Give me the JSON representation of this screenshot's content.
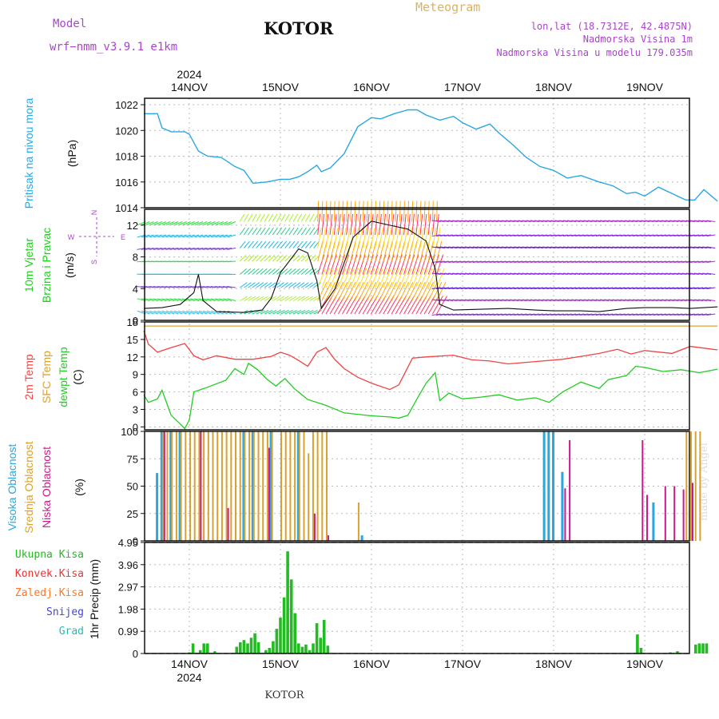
{
  "header": {
    "model_label": "Model",
    "model_name": "wrf−nmm_v3.9.1  e1km",
    "city": "KOTOR",
    "title": "Meteogram",
    "lonlat": "lon,lat (18.7312E, 42.4875N)",
    "altitude": "Nadmorska Visina 1m",
    "model_altitude": "Nadmorska Visina u modelu 179.035m",
    "footer_city": "KOTOR",
    "credit": "made by Angel"
  },
  "colors": {
    "pressure": "#2aa7e0",
    "temp_2m": "#ee4444",
    "sfc_temp": "#d9a230",
    "dewpoint": "#22cc22",
    "cloud_high": "#2aa7e0",
    "cloud_mid": "#d9a230",
    "cloud_low": "#cc1a8a",
    "precip_total": "#22bb22",
    "precip_conv": "#ee3333",
    "precip_frozen": "#ff7722",
    "precip_snow": "#4444dd",
    "precip_graupel": "#22bbbb",
    "header_purple": "#aa44cc",
    "header_orange": "#e0b060"
  },
  "chart_data": [
    {
      "type": "line",
      "panel": "pressure",
      "ylabel_lines": [
        "Pritisak na nivou mora",
        "(hPa)"
      ],
      "yticks": [
        1014,
        1016,
        1018,
        1020,
        1022
      ],
      "ylim": [
        1014,
        1022.5
      ],
      "top_labels": [
        "2024",
        "14NOV",
        "15NOV",
        "16NOV",
        "17NOV",
        "18NOV",
        "19NOV"
      ],
      "series": [
        {
          "name": "Pritisak na nivou mora",
          "points": [
            [
              -0.5,
              1021.3
            ],
            [
              -0.35,
              1021.3
            ],
            [
              -0.3,
              1020.2
            ],
            [
              -0.2,
              1019.9
            ],
            [
              -0.05,
              1019.9
            ],
            [
              0,
              1019.7
            ],
            [
              0.1,
              1018.4
            ],
            [
              0.2,
              1018
            ],
            [
              0.35,
              1017.9
            ],
            [
              0.5,
              1017.2
            ],
            [
              0.6,
              1016.9
            ],
            [
              0.7,
              1015.9
            ],
            [
              0.85,
              1016
            ],
            [
              1,
              1016.2
            ],
            [
              1.1,
              1016.2
            ],
            [
              1.2,
              1016.4
            ],
            [
              1.3,
              1016.8
            ],
            [
              1.4,
              1017.3
            ],
            [
              1.45,
              1016.8
            ],
            [
              1.55,
              1017.1
            ],
            [
              1.7,
              1018.2
            ],
            [
              1.85,
              1020.3
            ],
            [
              2,
              1021
            ],
            [
              2.1,
              1020.9
            ],
            [
              2.25,
              1021.3
            ],
            [
              2.4,
              1021.6
            ],
            [
              2.5,
              1021.6
            ],
            [
              2.6,
              1021.2
            ],
            [
              2.75,
              1020.8
            ],
            [
              2.9,
              1021.1
            ],
            [
              3,
              1020.6
            ],
            [
              3.15,
              1020.1
            ],
            [
              3.3,
              1020.5
            ],
            [
              3.4,
              1019.8
            ],
            [
              3.55,
              1018.9
            ],
            [
              3.7,
              1017.9
            ],
            [
              3.85,
              1017.2
            ],
            [
              4,
              1016.9
            ],
            [
              4.15,
              1016.3
            ],
            [
              4.3,
              1016.5
            ],
            [
              4.5,
              1016
            ],
            [
              4.65,
              1015.7
            ],
            [
              4.8,
              1015.1
            ],
            [
              4.9,
              1015.2
            ],
            [
              5,
              1014.9
            ],
            [
              5.15,
              1015.6
            ],
            [
              5.3,
              1015.1
            ],
            [
              5.45,
              1014.6
            ],
            [
              5.55,
              1014.6
            ],
            [
              5.65,
              1015.4
            ],
            [
              5.8,
              1014.5
            ]
          ]
        }
      ]
    },
    {
      "type": "line",
      "panel": "wind",
      "ylabel_lines": [
        "10m Vjetar",
        "Brzina i Pravac",
        "(m/s)"
      ],
      "compass": [
        "N",
        "W",
        "E",
        "S"
      ],
      "yticks": [
        0,
        4,
        8,
        12
      ],
      "ylim": [
        0,
        14
      ],
      "series": [
        {
          "name": "10m Vjetar brzina",
          "points": [
            [
              -0.5,
              1.5
            ],
            [
              -0.3,
              1.6
            ],
            [
              -0.1,
              2.0
            ],
            [
              0.05,
              3.5
            ],
            [
              0.1,
              5.8
            ],
            [
              0.15,
              2.5
            ],
            [
              0.3,
              1.1
            ],
            [
              0.6,
              1.0
            ],
            [
              0.8,
              1.3
            ],
            [
              0.9,
              2.8
            ],
            [
              1.0,
              6.0
            ],
            [
              1.2,
              9.0
            ],
            [
              1.3,
              8.5
            ],
            [
              1.4,
              5.0
            ],
            [
              1.45,
              1.5
            ],
            [
              1.6,
              4.0
            ],
            [
              1.8,
              10.5
            ],
            [
              2.0,
              12.5
            ],
            [
              2.2,
              12.0
            ],
            [
              2.4,
              11.5
            ],
            [
              2.6,
              10.0
            ],
            [
              2.7,
              6.5
            ],
            [
              2.75,
              2.0
            ],
            [
              2.9,
              1.3
            ],
            [
              3.2,
              1.4
            ],
            [
              3.5,
              1.5
            ],
            [
              3.8,
              1.3
            ],
            [
              4.0,
              1.2
            ],
            [
              4.3,
              1.2
            ],
            [
              4.5,
              1.1
            ],
            [
              4.8,
              1.5
            ],
            [
              5.0,
              1.6
            ],
            [
              5.3,
              1.6
            ],
            [
              5.5,
              1.5
            ],
            [
              5.8,
              1.7
            ]
          ]
        }
      ]
    },
    {
      "type": "line",
      "panel": "temperature",
      "ylabel_lines": [
        "2m Temp",
        "SFC Temp",
        "dewpt Temp",
        "(C)"
      ],
      "yticks": [
        0,
        3,
        6,
        9,
        12,
        15,
        18
      ],
      "ylim": [
        -0.5,
        18
      ],
      "series": [
        {
          "name": "2m Temp",
          "points": [
            [
              -0.5,
              16.5
            ],
            [
              -0.45,
              14.2
            ],
            [
              -0.35,
              12.8
            ],
            [
              -0.2,
              13.6
            ],
            [
              -0.05,
              14.3
            ],
            [
              0.05,
              12.2
            ],
            [
              0.15,
              11.5
            ],
            [
              0.3,
              12.2
            ],
            [
              0.5,
              11.6
            ],
            [
              0.7,
              11.6
            ],
            [
              0.9,
              12.1
            ],
            [
              1.0,
              12.8
            ],
            [
              1.1,
              12.3
            ],
            [
              1.2,
              11.4
            ],
            [
              1.3,
              10.4
            ],
            [
              1.4,
              12.8
            ],
            [
              1.5,
              13.6
            ],
            [
              1.6,
              11.5
            ],
            [
              1.7,
              10
            ],
            [
              1.85,
              8.5
            ],
            [
              2.0,
              7.5
            ],
            [
              2.2,
              6.4
            ],
            [
              2.3,
              7.2
            ],
            [
              2.45,
              11.8
            ],
            [
              2.6,
              12
            ],
            [
              2.9,
              12.3
            ],
            [
              3.1,
              11.5
            ],
            [
              3.3,
              11.3
            ],
            [
              3.5,
              10.8
            ],
            [
              3.8,
              11.2
            ],
            [
              4.1,
              11.6
            ],
            [
              4.3,
              12.1
            ],
            [
              4.5,
              12.6
            ],
            [
              4.7,
              13.3
            ],
            [
              4.85,
              12.5
            ],
            [
              5.0,
              13.1
            ],
            [
              5.3,
              12.6
            ],
            [
              5.5,
              13.8
            ],
            [
              5.8,
              13.2
            ]
          ]
        },
        {
          "name": "SFC Temp",
          "points": [
            [
              -0.5,
              17.3
            ],
            [
              5.8,
              17.3
            ]
          ]
        },
        {
          "name": "dewpt Temp",
          "points": [
            [
              -0.5,
              5.5
            ],
            [
              -0.45,
              4.2
            ],
            [
              -0.35,
              4.8
            ],
            [
              -0.3,
              6.3
            ],
            [
              -0.2,
              2
            ],
            [
              -0.1,
              0.5
            ],
            [
              -0.05,
              -0.3
            ],
            [
              0.0,
              1.2
            ],
            [
              0.05,
              6.0
            ],
            [
              0.2,
              6.8
            ],
            [
              0.4,
              8.0
            ],
            [
              0.5,
              10
            ],
            [
              0.6,
              9
            ],
            [
              0.65,
              10.9
            ],
            [
              0.75,
              9.8
            ],
            [
              0.85,
              8.2
            ],
            [
              0.95,
              7.0
            ],
            [
              1.05,
              8.3
            ],
            [
              1.15,
              6.6
            ],
            [
              1.3,
              4.7
            ],
            [
              1.5,
              3.7
            ],
            [
              1.7,
              2.4
            ],
            [
              2.0,
              1.9
            ],
            [
              2.2,
              1.7
            ],
            [
              2.3,
              1.5
            ],
            [
              2.4,
              2.0
            ],
            [
              2.5,
              4.8
            ],
            [
              2.6,
              7.5
            ],
            [
              2.7,
              9.3
            ],
            [
              2.75,
              4.5
            ],
            [
              2.85,
              5.8
            ],
            [
              3.0,
              4.8
            ],
            [
              3.2,
              5.1
            ],
            [
              3.4,
              5.5
            ],
            [
              3.6,
              4.6
            ],
            [
              3.8,
              5.0
            ],
            [
              3.95,
              4.2
            ],
            [
              4.1,
              6.0
            ],
            [
              4.3,
              7.7
            ],
            [
              4.5,
              6.6
            ],
            [
              4.6,
              8.1
            ],
            [
              4.8,
              8.8
            ],
            [
              4.9,
              10.4
            ],
            [
              5.0,
              10.2
            ],
            [
              5.2,
              9.5
            ],
            [
              5.4,
              9.8
            ],
            [
              5.6,
              9.3
            ],
            [
              5.8,
              9.9
            ]
          ]
        }
      ]
    },
    {
      "type": "bar",
      "panel": "clouds",
      "ylabel_lines": [
        "Visoka Oblacnost",
        "Srednja Oblacnost",
        "Niska Oblacnost",
        "(%)"
      ],
      "yticks": [
        0,
        25,
        50,
        75,
        100
      ],
      "ylim": [
        0,
        100
      ],
      "series": [
        {
          "name": "Visoka Oblacnost",
          "x": [
            -0.35,
            -0.3,
            -0.2,
            -0.1,
            0.6,
            0.7,
            0.9,
            1.2,
            1.9,
            3.9,
            3.95,
            4.0,
            4.1,
            5.1
          ],
          "values": [
            62,
            100,
            100,
            100,
            100,
            100,
            100,
            100,
            5,
            100,
            100,
            100,
            63,
            35
          ]
        },
        {
          "name": "Srednja Oblacnost",
          "x": [
            -0.3,
            -0.25,
            -0.2,
            -0.15,
            -0.1,
            -0.05,
            0,
            0.05,
            0.1,
            0.15,
            0.2,
            0.25,
            0.3,
            0.35,
            0.4,
            0.45,
            0.5,
            0.55,
            0.6,
            0.65,
            0.7,
            0.75,
            0.8,
            0.85,
            0.9,
            1.0,
            1.05,
            1.1,
            1.15,
            1.2,
            1.25,
            1.3,
            1.35,
            1.4,
            1.45,
            1.5,
            1.85,
            5.45,
            5.5,
            5.55,
            5.6
          ],
          "values": [
            100,
            100,
            100,
            100,
            100,
            100,
            100,
            100,
            100,
            100,
            100,
            100,
            100,
            100,
            100,
            100,
            100,
            100,
            100,
            100,
            100,
            100,
            100,
            100,
            100,
            100,
            100,
            100,
            100,
            100,
            100,
            80,
            100,
            100,
            100,
            100,
            35,
            100,
            100,
            100,
            100
          ]
        },
        {
          "name": "Niska Oblacnost",
          "x": [
            -0.3,
            0.1,
            0.4,
            0.85,
            1.35,
            1.5,
            4.1,
            4.15,
            4.95,
            5.0,
            5.2,
            5.3,
            5.4,
            5.5
          ],
          "values": [
            100,
            100,
            30,
            85,
            25,
            5,
            48,
            92,
            92,
            42,
            50,
            50,
            47,
            53
          ]
        }
      ]
    },
    {
      "type": "bar",
      "panel": "precip",
      "ylabel_lines": [
        "1hr Precip (mm)"
      ],
      "legend": [
        "Ukupna Kisa",
        "Konvek.Kisa",
        "Zaledj.Kisa",
        "Snijeg",
        "Grad"
      ],
      "yticks": [
        0,
        0.99,
        1.98,
        2.97,
        3.96,
        4.95
      ],
      "ytick_labels": [
        "0",
        "0.99",
        "1.98",
        "2.97",
        "3.96",
        "4.95"
      ],
      "ylim": [
        0,
        4.95
      ],
      "bottom_labels": [
        "14NOV",
        "2024",
        "15NOV",
        "16NOV",
        "17NOV",
        "18NOV",
        "19NOV"
      ],
      "series": [
        {
          "name": "Ukupna Kisa",
          "x": [
            0.0,
            0.04,
            0.12,
            0.16,
            0.2,
            0.28,
            0.52,
            0.56,
            0.6,
            0.64,
            0.68,
            0.72,
            0.76,
            0.84,
            0.88,
            0.92,
            0.96,
            1.0,
            1.04,
            1.08,
            1.12,
            1.16,
            1.2,
            1.24,
            1.28,
            1.32,
            1.36,
            1.4,
            1.44,
            1.48,
            1.52,
            4.92,
            4.96,
            5.28,
            5.36,
            5.56,
            5.6,
            5.64,
            5.68
          ],
          "values": [
            0.05,
            0.45,
            0.15,
            0.45,
            0.45,
            0.1,
            0.3,
            0.5,
            0.6,
            0.45,
            0.7,
            0.9,
            0.5,
            0.15,
            0.25,
            0.55,
            1.1,
            1.6,
            2.5,
            4.55,
            3.3,
            1.8,
            0.45,
            0.3,
            0.4,
            0.15,
            0.45,
            1.35,
            0.7,
            1.5,
            0.35,
            0.85,
            0.25,
            0.05,
            0.1,
            0.4,
            0.45,
            0.45,
            0.45
          ]
        }
      ]
    }
  ]
}
